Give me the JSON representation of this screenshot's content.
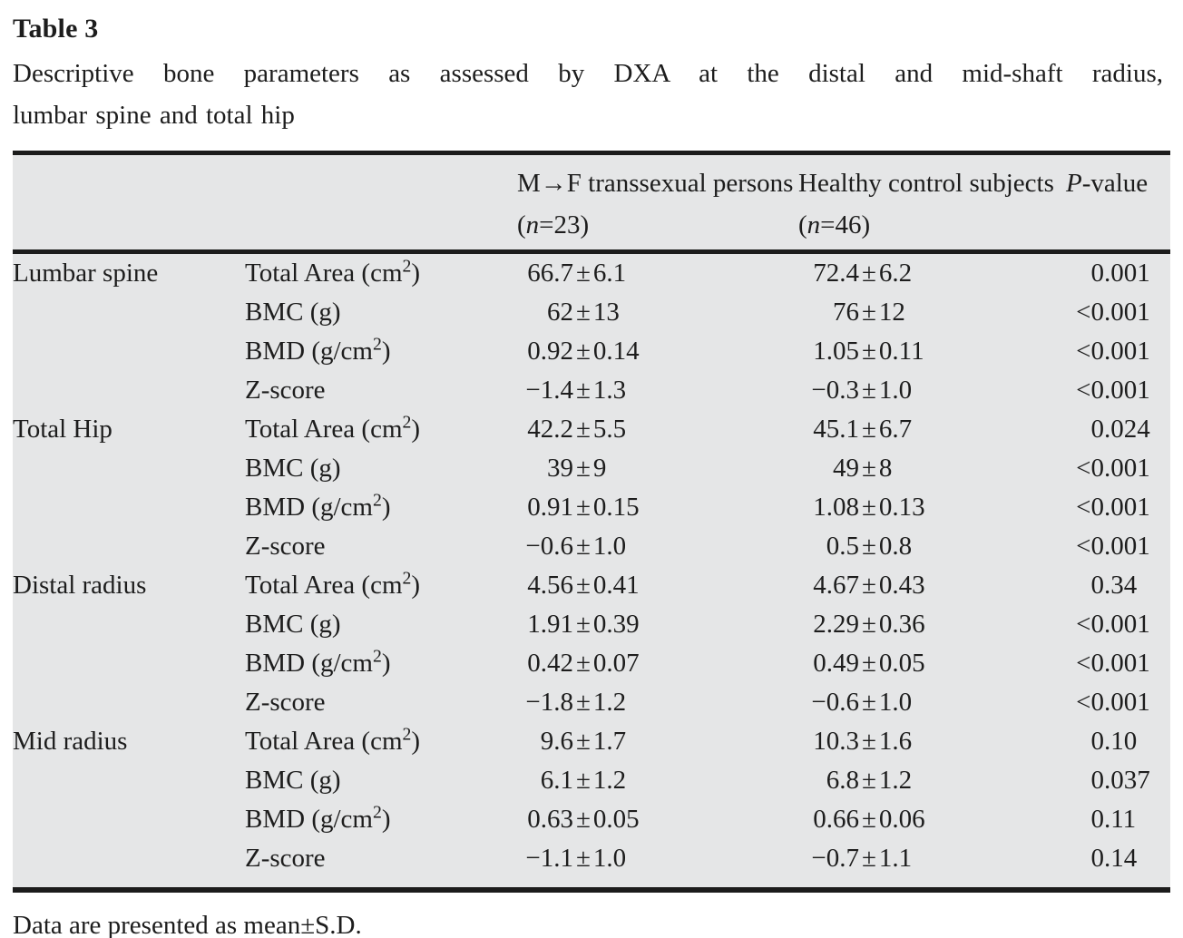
{
  "title": "Table 3",
  "caption_lines": [
    "Descriptive bone parameters as assessed by DXA at the distal and mid-shaft radius,",
    "lumbar spine and total hip"
  ],
  "table": {
    "background": "#e5e6e7",
    "rule_color": "#1c1c1c",
    "columns": {
      "site": "",
      "parameter": "",
      "group1": "M→F transsexual persons (*n*=23)",
      "group2": "Healthy control subjects (*n*=46)",
      "pvalue": "*P*-value"
    },
    "groups": [
      {
        "site": "Lumbar spine",
        "rows": [
          {
            "parameter": "Total Area (cm²)",
            "group1": "66.7±6.1",
            "group2": "72.4±6.2",
            "p": "0.001"
          },
          {
            "parameter": "BMC (g)",
            "group1": "62±13",
            "group2": "76±12",
            "p": "<0.001"
          },
          {
            "parameter": "BMD (g/cm²)",
            "group1": "0.92±0.14",
            "group2": "1.05±0.11",
            "p": "<0.001"
          },
          {
            "parameter": "Z-score",
            "group1": "−1.4±1.3",
            "group2": "−0.3±1.0",
            "p": "<0.001"
          }
        ]
      },
      {
        "site": "Total Hip",
        "rows": [
          {
            "parameter": "Total Area (cm²)",
            "group1": "42.2±5.5",
            "group2": "45.1±6.7",
            "p": "0.024"
          },
          {
            "parameter": "BMC (g)",
            "group1": "39±9",
            "group2": "49±8",
            "p": "<0.001"
          },
          {
            "parameter": "BMD (g/cm²)",
            "group1": "0.91±0.15",
            "group2": "1.08±0.13",
            "p": "<0.001"
          },
          {
            "parameter": "Z-score",
            "group1": "−0.6±1.0",
            "group2": "0.5±0.8",
            "p": "<0.001"
          }
        ]
      },
      {
        "site": "Distal radius",
        "rows": [
          {
            "parameter": "Total Area (cm²)",
            "group1": "4.56±0.41",
            "group2": "4.67±0.43",
            "p": "0.34"
          },
          {
            "parameter": "BMC (g)",
            "group1": "1.91±0.39",
            "group2": "2.29±0.36",
            "p": "<0.001"
          },
          {
            "parameter": "BMD (g/cm²)",
            "group1": "0.42±0.07",
            "group2": "0.49±0.05",
            "p": "<0.001"
          },
          {
            "parameter": "Z-score",
            "group1": "−1.8±1.2",
            "group2": "−0.6±1.0",
            "p": "<0.001"
          }
        ]
      },
      {
        "site": "Mid radius",
        "rows": [
          {
            "parameter": "Total Area (cm²)",
            "group1": "9.6±1.7",
            "group2": "10.3±1.6",
            "p": "0.10"
          },
          {
            "parameter": "BMC (g)",
            "group1": "6.1±1.2",
            "group2": "6.8±1.2",
            "p": "0.037"
          },
          {
            "parameter": "BMD (g/cm²)",
            "group1": "0.63±0.05",
            "group2": "0.66±0.06",
            "p": "0.11"
          },
          {
            "parameter": "Z-score",
            "group1": "−1.1±1.0",
            "group2": "−0.7±1.1",
            "p": "0.14"
          }
        ]
      }
    ]
  },
  "footnote": "Data are presented as mean±S.D."
}
